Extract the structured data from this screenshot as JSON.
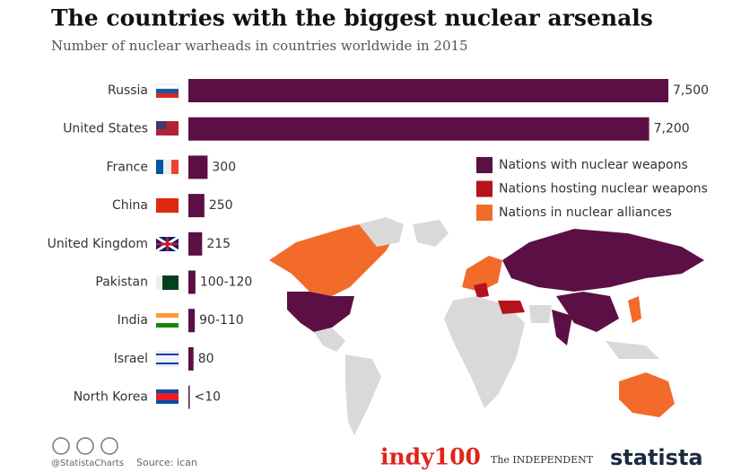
{
  "chart_data": {
    "type": "bar",
    "orientation": "horizontal",
    "title": "The countries with the biggest nuclear arsenals",
    "subtitle": "Number of nuclear warheads in countries worldwide in 2015",
    "categories": [
      "Russia",
      "United States",
      "France",
      "China",
      "United Kingdom",
      "Pakistan",
      "India",
      "Israel",
      "North Korea"
    ],
    "values": [
      7500,
      7200,
      300,
      250,
      215,
      110,
      100,
      80,
      9
    ],
    "value_labels": [
      "7,500",
      "7,200",
      "300",
      "250",
      "215",
      "100-120",
      "90-110",
      "80",
      "<10"
    ],
    "color": "#5b0f45",
    "xlim": [
      0,
      7500
    ],
    "legend": [
      {
        "name": "Nations with nuclear weapons",
        "color": "#5b0f45"
      },
      {
        "name": "Nations hosting nuclear weapons",
        "color": "#b5121b"
      },
      {
        "name": "Nations in nuclear alliances",
        "color": "#f26b2b"
      }
    ]
  },
  "footer": {
    "handle": "@StatistaCharts",
    "source": "Source: ican",
    "logo_1": "indy100",
    "logo_2": "The INDEPENDENT",
    "logo_3": "statista"
  }
}
